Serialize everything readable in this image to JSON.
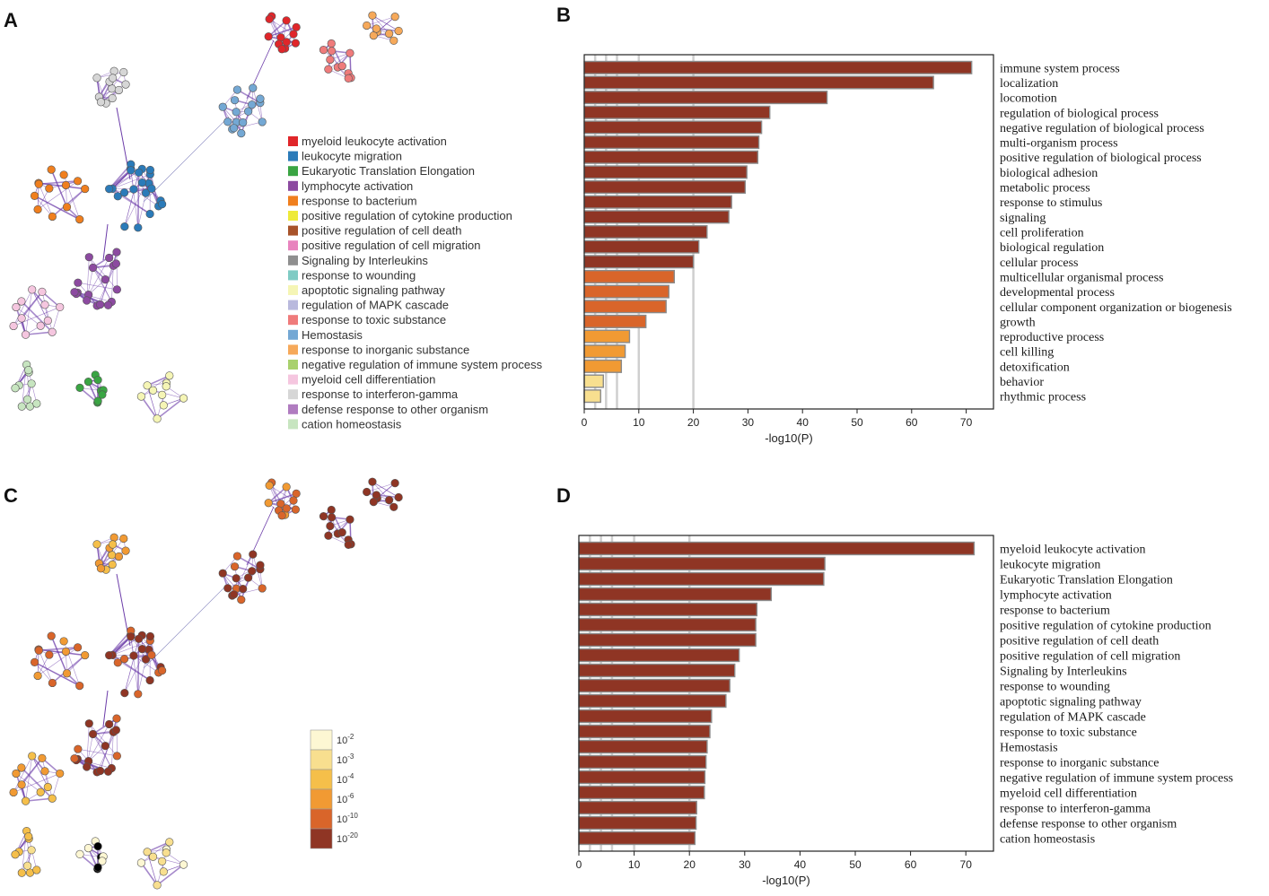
{
  "panels": {
    "a": "A",
    "b": "B",
    "c": "C",
    "d": "D"
  },
  "network_legend": {
    "items": [
      {
        "label": "myeloid leukocyte activation",
        "color": "#e0262a"
      },
      {
        "label": "leukocyte migration",
        "color": "#2b7bb9"
      },
      {
        "label": "Eukaryotic Translation Elongation",
        "color": "#3aa543"
      },
      {
        "label": "lymphocyte activation",
        "color": "#8c4aa0"
      },
      {
        "label": "response to bacterium",
        "color": "#f07f1e"
      },
      {
        "label": "positive regulation of cytokine production",
        "color": "#eeea3a"
      },
      {
        "label": "positive regulation of cell death",
        "color": "#a8532a"
      },
      {
        "label": "positive regulation of cell migration",
        "color": "#e884be"
      },
      {
        "label": "Signaling by Interleukins",
        "color": "#8f8f8f"
      },
      {
        "label": "response to wounding",
        "color": "#7fcbc4"
      },
      {
        "label": "apoptotic signaling pathway",
        "color": "#f5f5b5"
      },
      {
        "label": "regulation of MAPK cascade",
        "color": "#b9b9dd"
      },
      {
        "label": "response to toxic substance",
        "color": "#ef7b7b"
      },
      {
        "label": "Hemostasis",
        "color": "#74a8d4"
      },
      {
        "label": "response to inorganic substance",
        "color": "#f6a95a"
      },
      {
        "label": "negative regulation of immune system process",
        "color": "#a9d16d"
      },
      {
        "label": "myeloid cell differentiation",
        "color": "#f5c6df"
      },
      {
        "label": "response to interferon-gamma",
        "color": "#d6d6d6"
      },
      {
        "label": "defense response to other organism",
        "color": "#b07cc0"
      },
      {
        "label": "cation homeostasis",
        "color": "#c7e5c0"
      }
    ]
  },
  "pvalue_scale": {
    "items": [
      {
        "base": "10",
        "exp": "-2",
        "color": "#fdf7d3"
      },
      {
        "base": "10",
        "exp": "-3",
        "color": "#f8df8f"
      },
      {
        "base": "10",
        "exp": "-4",
        "color": "#f5bf4a"
      },
      {
        "base": "10",
        "exp": "-6",
        "color": "#f19a33"
      },
      {
        "base": "10",
        "exp": "-10",
        "color": "#d9652a"
      },
      {
        "base": "10",
        "exp": "-20",
        "color": "#8f3524"
      }
    ]
  },
  "chart_data": [
    {
      "type": "bar",
      "orientation": "horizontal",
      "panel": "B",
      "xlabel": "-log10(P)",
      "xlim": [
        0,
        75
      ],
      "xticks": [
        "0",
        "10",
        "20",
        "30",
        "40",
        "50",
        "60",
        "70"
      ],
      "grid_lines_x": [
        2,
        4,
        6,
        10,
        20
      ],
      "categories": [
        "immune system process",
        "localization",
        "locomotion",
        "regulation of biological process",
        "negative regulation of biological process",
        "multi-organism process",
        "positive regulation of biological process",
        "biological adhesion",
        "metabolic process",
        "response to stimulus",
        "signaling",
        "cell proliferation",
        "biological regulation",
        "cellular process",
        "multicellular organismal process",
        "developmental process",
        "cellular component organization or biogenesis",
        "growth",
        "reproductive process",
        "cell killing",
        "detoxification",
        "behavior",
        "rhythmic process"
      ],
      "values": [
        71,
        64,
        44.5,
        34,
        32.5,
        32,
        31.8,
        29.8,
        29.5,
        27,
        26.5,
        22.5,
        21,
        20,
        16.5,
        15.5,
        15,
        11.3,
        8.3,
        7.5,
        6.8,
        3.5,
        3
      ]
    },
    {
      "type": "bar",
      "orientation": "horizontal",
      "panel": "D",
      "xlabel": "-log10(P)",
      "xlim": [
        0,
        75
      ],
      "xticks": [
        "0",
        "10",
        "20",
        "30",
        "40",
        "50",
        "60",
        "70"
      ],
      "grid_lines_x": [
        2,
        4,
        6,
        10,
        20
      ],
      "categories": [
        "myeloid leukocyte activation",
        "leukocyte migration",
        "Eukaryotic Translation Elongation",
        "lymphocyte activation",
        "response to bacterium",
        "positive regulation of cytokine production",
        "positive regulation of cell death",
        "positive regulation of cell migration",
        "Signaling by Interleukins",
        "response to wounding",
        "apoptotic signaling pathway",
        "regulation of MAPK cascade",
        "response to toxic substance",
        "Hemostasis",
        "response to inorganic substance",
        "negative regulation of immune system process",
        "myeloid cell differentiation",
        "response to interferon-gamma",
        "defense response to other organism",
        "cation homeostasis"
      ],
      "values": [
        71.5,
        44.5,
        44.3,
        34.8,
        32.2,
        32,
        32,
        29,
        28.2,
        27.3,
        26.6,
        24,
        23.7,
        23.2,
        23,
        22.8,
        22.7,
        21.3,
        21.2,
        21
      ]
    }
  ]
}
